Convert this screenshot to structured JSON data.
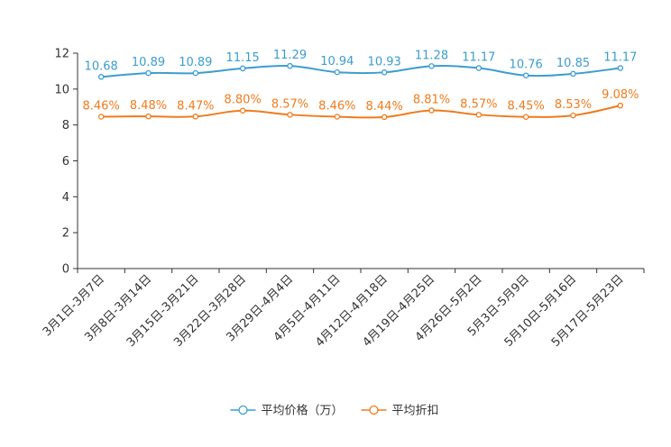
{
  "chart_data": {
    "type": "line",
    "title": "",
    "xlabel": "",
    "ylabel": "",
    "ylim": [
      0,
      12
    ],
    "yticks": [
      0,
      2,
      4,
      6,
      8,
      10,
      12
    ],
    "categories": [
      "3月1日-3月7日",
      "3月8日-3月14日",
      "3月15日-3月21日",
      "3月22日-3月28日",
      "3月29日-4月4日",
      "4月5日-4月11日",
      "4月12日-4月18日",
      "4月19日-4月25日",
      "4月26日-5月2日",
      "5月3日-5月9日",
      "5月10日-5月16日",
      "5月17日-5月23日"
    ],
    "series": [
      {
        "name": "平均价格（万）",
        "color": "#3b9dd0",
        "values": [
          10.68,
          10.89,
          10.89,
          11.15,
          11.29,
          10.94,
          10.93,
          11.28,
          11.17,
          10.76,
          10.85,
          11.17
        ],
        "labels": [
          "10.68",
          "10.89",
          "10.89",
          "11.15",
          "11.29",
          "10.94",
          "10.93",
          "11.28",
          "11.17",
          "10.76",
          "10.85",
          "11.17"
        ]
      },
      {
        "name": "平均折扣",
        "color": "#f07b1d",
        "values": [
          8.46,
          8.48,
          8.47,
          8.8,
          8.57,
          8.46,
          8.44,
          8.81,
          8.57,
          8.45,
          8.53,
          9.08
        ],
        "labels": [
          "8.46%",
          "8.48%",
          "8.47%",
          "8.80%",
          "8.57%",
          "8.46%",
          "8.44%",
          "8.81%",
          "8.57%",
          "8.45%",
          "8.53%",
          "9.08%"
        ]
      }
    ],
    "legend_position": "bottom-center"
  }
}
